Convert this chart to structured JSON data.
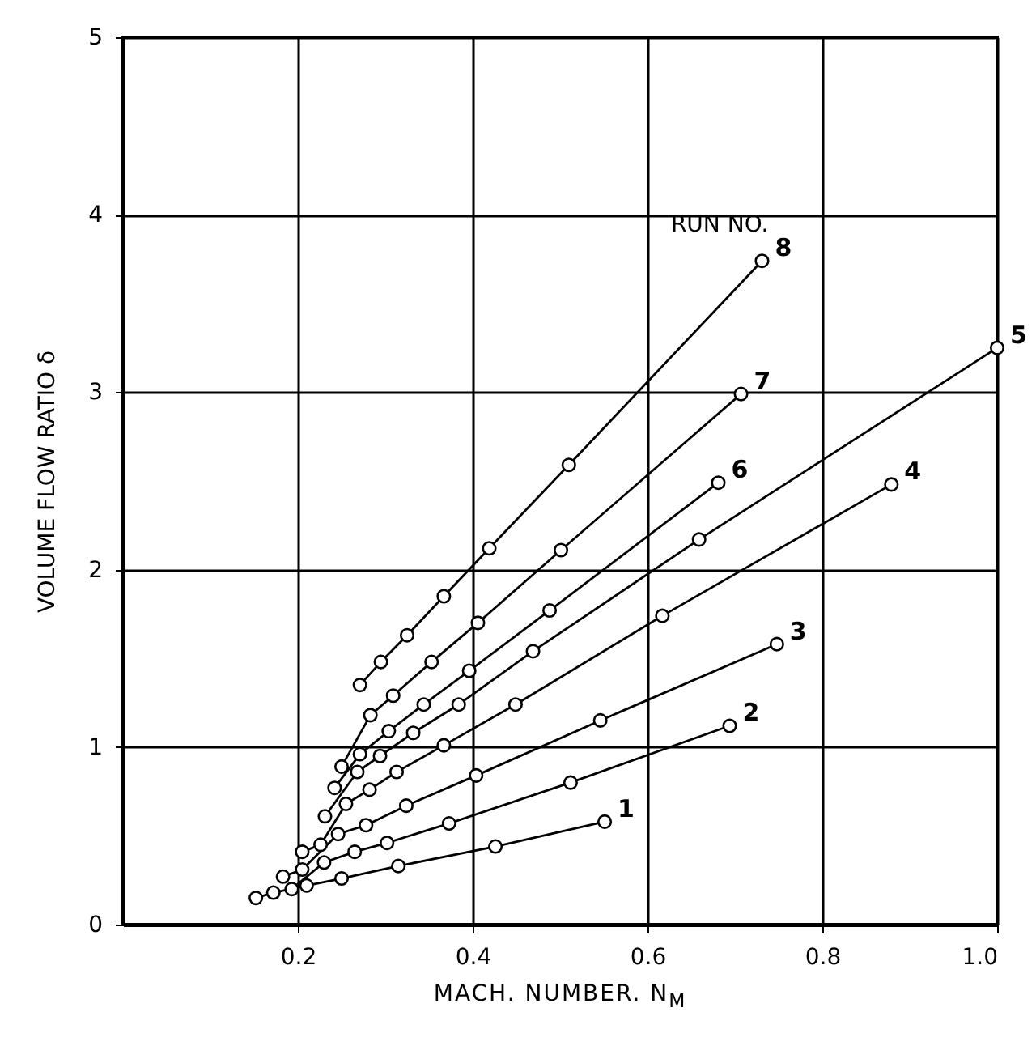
{
  "chart_data": {
    "type": "line",
    "xlabel": "MACH. NUMBER. N$_{M}$",
    "ylabel": "VOLUME FLOW RATIO δ",
    "annotations": [
      "RUN NO."
    ],
    "xlim": [
      0,
      1
    ],
    "ylim": [
      0,
      5
    ],
    "xticks": [
      0.2,
      0.4,
      0.6,
      0.8,
      {
        "value": 1,
        "label": "1.0"
      }
    ],
    "yticks": [
      0,
      1,
      2,
      3,
      4,
      5
    ],
    "grid": true,
    "marker": "circle",
    "line_style": "solid",
    "legend": false,
    "series": [
      {
        "name": "1",
        "color": "#000000",
        "x": [
          0.152,
          0.172,
          0.21,
          0.25,
          0.315,
          0.426,
          0.551
        ],
        "values": [
          0.15,
          0.18,
          0.22,
          0.26,
          0.33,
          0.44,
          0.58
        ]
      },
      {
        "name": "2",
        "color": "#000000",
        "x": [
          0.193,
          0.23,
          0.265,
          0.302,
          0.373,
          0.512,
          0.694
        ],
        "values": [
          0.2,
          0.35,
          0.41,
          0.46,
          0.57,
          0.8,
          1.12
        ]
      },
      {
        "name": "3",
        "color": "#000000",
        "x": [
          0.183,
          0.205,
          0.246,
          0.278,
          0.324,
          0.404,
          0.546,
          0.748
        ],
        "values": [
          0.27,
          0.31,
          0.51,
          0.56,
          0.67,
          0.84,
          1.15,
          1.58
        ]
      },
      {
        "name": "4",
        "color": "#000000",
        "x": [
          0.205,
          0.226,
          0.255,
          0.282,
          0.313,
          0.367,
          0.449,
          0.617,
          0.879
        ],
        "values": [
          0.41,
          0.45,
          0.68,
          0.76,
          0.86,
          1.01,
          1.24,
          1.74,
          2.48
        ]
      },
      {
        "name": "5",
        "color": "#000000",
        "x": [
          0.231,
          0.268,
          0.294,
          0.332,
          0.384,
          0.469,
          0.659,
          1.0
        ],
        "values": [
          0.61,
          0.86,
          0.95,
          1.08,
          1.24,
          1.54,
          2.17,
          3.25
        ]
      },
      {
        "name": "6",
        "color": "#000000",
        "x": [
          0.242,
          0.271,
          0.304,
          0.344,
          0.396,
          0.488,
          0.681
        ],
        "values": [
          0.77,
          0.96,
          1.09,
          1.24,
          1.43,
          1.77,
          2.49
        ]
      },
      {
        "name": "7",
        "color": "#000000",
        "x": [
          0.25,
          0.283,
          0.309,
          0.353,
          0.406,
          0.501,
          0.707
        ],
        "values": [
          0.89,
          1.18,
          1.29,
          1.48,
          1.7,
          2.11,
          2.99
        ]
      },
      {
        "name": "8",
        "color": "#000000",
        "x": [
          0.271,
          0.295,
          0.325,
          0.367,
          0.419,
          0.51,
          0.731
        ],
        "values": [
          1.35,
          1.48,
          1.63,
          1.85,
          2.12,
          2.59,
          3.74
        ]
      }
    ]
  }
}
